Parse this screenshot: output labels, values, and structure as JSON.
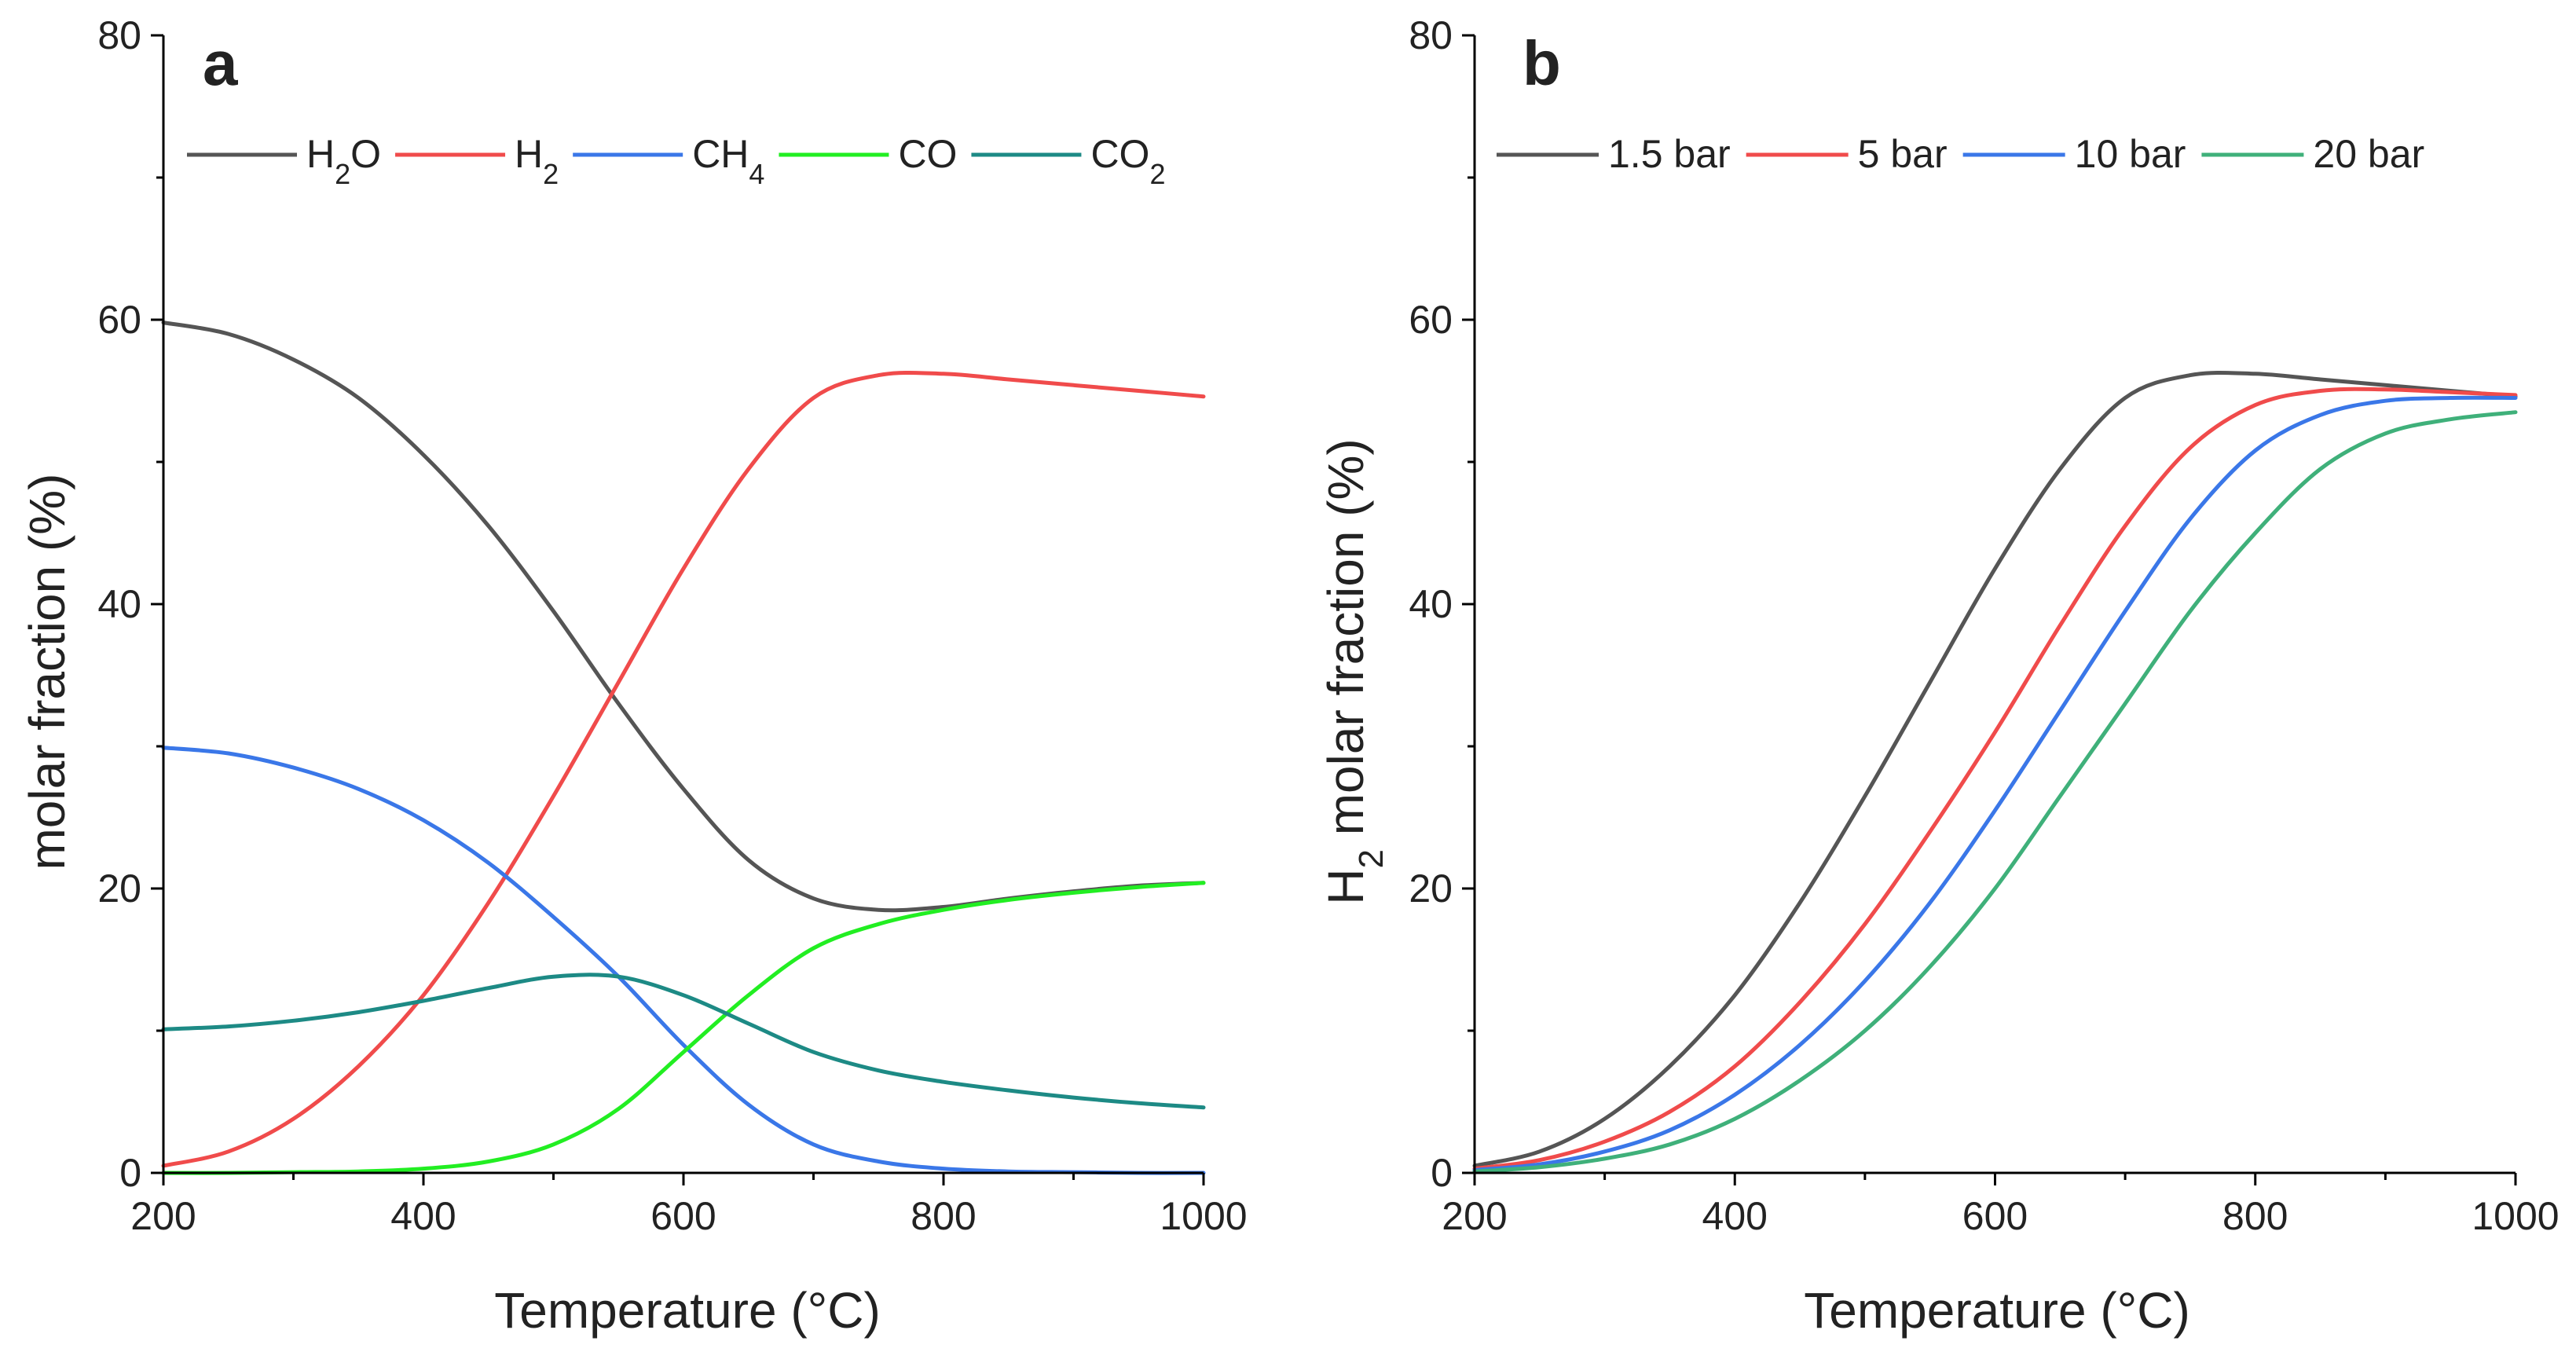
{
  "colors": {
    "black": "#555555",
    "red": "#f04b4b",
    "blue": "#3a77e8",
    "green": "#22ee22",
    "teal": "#1d8a85",
    "green2": "#3fb07a"
  },
  "chart_data": [
    {
      "type": "line",
      "panel": "a",
      "xlabel": "Temperature (°C)",
      "ylabel": "molar fraction (%)",
      "xlim": [
        200,
        1000
      ],
      "ylim": [
        0,
        80
      ],
      "xticks": [
        200,
        400,
        600,
        800,
        1000
      ],
      "yticks": [
        0,
        20,
        40,
        60,
        80
      ],
      "legend_position": "top",
      "series": [
        {
          "name": "H2O",
          "label_main": "H",
          "label_sub": "2",
          "label_tail": "O",
          "color": "#555555",
          "x": [
            200,
            250,
            300,
            350,
            400,
            450,
            500,
            550,
            600,
            650,
            700,
            750,
            800,
            850,
            900,
            950,
            1000
          ],
          "y": [
            59.8,
            59.0,
            57.2,
            54.5,
            50.5,
            45.5,
            39.5,
            33.0,
            27.0,
            22.0,
            19.3,
            18.5,
            18.7,
            19.3,
            19.8,
            20.2,
            20.4
          ]
        },
        {
          "name": "H2",
          "label_main": "H",
          "label_sub": "2",
          "label_tail": "",
          "color": "#f04b4b",
          "x": [
            200,
            250,
            300,
            350,
            400,
            450,
            500,
            550,
            600,
            650,
            700,
            750,
            800,
            850,
            900,
            950,
            1000
          ],
          "y": [
            0.5,
            1.5,
            3.8,
            7.5,
            12.5,
            19.0,
            26.5,
            34.5,
            42.5,
            49.5,
            54.5,
            56.1,
            56.2,
            55.8,
            55.4,
            55.0,
            54.6
          ]
        },
        {
          "name": "CH4",
          "label_main": "CH",
          "label_sub": "4",
          "label_tail": "",
          "color": "#3a77e8",
          "x": [
            200,
            250,
            300,
            350,
            400,
            450,
            500,
            550,
            600,
            650,
            700,
            750,
            800,
            850,
            900,
            950,
            1000
          ],
          "y": [
            29.9,
            29.5,
            28.5,
            27.0,
            24.8,
            21.8,
            18.0,
            13.8,
            9.0,
            4.8,
            2.0,
            0.8,
            0.3,
            0.1,
            0.05,
            0.0,
            0.0
          ]
        },
        {
          "name": "CO",
          "label_main": "CO",
          "label_sub": "",
          "label_tail": "",
          "color": "#22ee22",
          "x": [
            200,
            250,
            300,
            350,
            400,
            450,
            500,
            550,
            600,
            650,
            700,
            750,
            800,
            850,
            900,
            950,
            1000
          ],
          "y": [
            0.0,
            0.0,
            0.05,
            0.1,
            0.3,
            0.8,
            2.0,
            4.5,
            8.5,
            12.5,
            15.8,
            17.5,
            18.5,
            19.2,
            19.7,
            20.1,
            20.4
          ]
        },
        {
          "name": "CO2",
          "label_main": "CO",
          "label_sub": "2",
          "label_tail": "",
          "color": "#1d8a85",
          "x": [
            200,
            250,
            300,
            350,
            400,
            450,
            500,
            550,
            600,
            650,
            700,
            750,
            800,
            850,
            900,
            950,
            1000
          ],
          "y": [
            10.1,
            10.3,
            10.7,
            11.3,
            12.1,
            13.0,
            13.8,
            13.8,
            12.5,
            10.5,
            8.5,
            7.2,
            6.4,
            5.8,
            5.3,
            4.9,
            4.6
          ]
        }
      ]
    },
    {
      "type": "line",
      "panel": "b",
      "xlabel": "Temperature (°C)",
      "ylabel_main": "H",
      "ylabel_sub": "2",
      "ylabel_tail": " molar fraction (%)",
      "xlim": [
        200,
        1000
      ],
      "ylim": [
        0,
        80
      ],
      "xticks": [
        200,
        400,
        600,
        800,
        1000
      ],
      "yticks": [
        0,
        20,
        40,
        60,
        80
      ],
      "legend_position": "top",
      "series": [
        {
          "name": "1.5 bar",
          "color": "#555555",
          "x": [
            200,
            250,
            300,
            350,
            400,
            450,
            500,
            550,
            600,
            650,
            700,
            750,
            800,
            850,
            900,
            950,
            1000
          ],
          "y": [
            0.5,
            1.5,
            3.8,
            7.5,
            12.5,
            19.0,
            26.5,
            34.5,
            42.5,
            49.5,
            54.5,
            56.1,
            56.2,
            55.8,
            55.4,
            55.0,
            54.6
          ]
        },
        {
          "name": "5 bar",
          "color": "#f04b4b",
          "x": [
            200,
            250,
            300,
            350,
            400,
            450,
            500,
            550,
            600,
            650,
            700,
            750,
            800,
            850,
            900,
            950,
            1000
          ],
          "y": [
            0.3,
            0.9,
            2.2,
            4.3,
            7.5,
            12.0,
            17.5,
            24.0,
            31.0,
            38.5,
            45.5,
            51.0,
            54.0,
            55.0,
            55.1,
            54.9,
            54.7
          ]
        },
        {
          "name": "10 bar",
          "color": "#3a77e8",
          "x": [
            200,
            250,
            300,
            350,
            400,
            450,
            500,
            550,
            600,
            650,
            700,
            750,
            800,
            850,
            900,
            950,
            1000
          ],
          "y": [
            0.2,
            0.6,
            1.5,
            3.0,
            5.5,
            9.0,
            13.5,
            19.0,
            25.5,
            32.5,
            39.5,
            46.0,
            50.8,
            53.3,
            54.3,
            54.5,
            54.5
          ]
        },
        {
          "name": "20 bar",
          "color": "#3fb07a",
          "x": [
            200,
            250,
            300,
            350,
            400,
            450,
            500,
            550,
            600,
            650,
            700,
            750,
            800,
            850,
            900,
            950,
            1000
          ],
          "y": [
            0.1,
            0.4,
            1.0,
            2.0,
            3.8,
            6.5,
            10.0,
            14.5,
            20.0,
            26.5,
            33.0,
            39.5,
            45.0,
            49.5,
            52.0,
            53.0,
            53.5
          ]
        }
      ]
    }
  ]
}
